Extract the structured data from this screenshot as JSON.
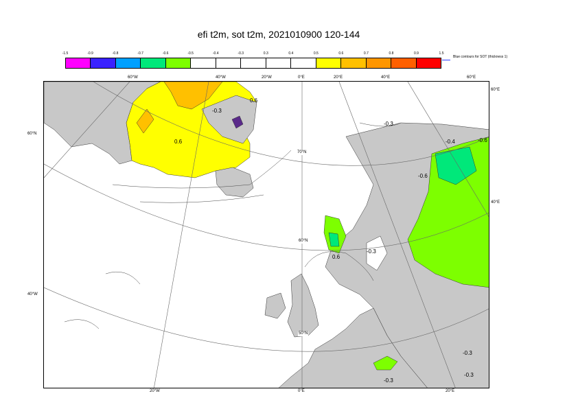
{
  "title": "efi t2m, sot t2m, 2021010900 120-144",
  "colorbar": {
    "ticks": [
      "-1.5",
      "-0.9",
      "-0.8",
      "-0.7",
      "-0.6",
      "-0.5",
      "-0.4",
      "-0.3",
      "0.3",
      "0.4",
      "0.5",
      "0.6",
      "0.7",
      "0.8",
      "0.9",
      "1.5"
    ],
    "colors": [
      "#ff00ff",
      "#3a22ff",
      "#00a0ff",
      "#00e87a",
      "#7dff00",
      "#ffffff",
      "#ffffff",
      "#ffffff",
      "#ffffff",
      "#ffffff",
      "#ffff00",
      "#ffc000",
      "#ff9600",
      "#ff6000",
      "#ff0000"
    ],
    "sot_note": "Blue contours for SOT (thickness 1)"
  },
  "map": {
    "land_color": "#c8c8c8",
    "sea_color": "#ffffff",
    "lon_top": [
      "60°W",
      "40°W",
      "20°W",
      "0°E",
      "20°E",
      "40°E",
      "60°E"
    ],
    "lon_bottom": [
      "20°W",
      "0°E",
      "20°E"
    ],
    "lat_left": [
      "60°N",
      "50°W",
      "40°W"
    ],
    "lat_right": [
      "60°E",
      "40°E"
    ],
    "lat_interior": [
      "70°N",
      "60°N",
      "50°N"
    ],
    "contour_labels": [
      "-0.3",
      "0.3",
      "0.6",
      "0.6",
      "-0.3",
      "-0.4",
      "-0.6",
      "-0.6",
      "0.6",
      "-0.3",
      "-0.3",
      "-0.3"
    ]
  }
}
